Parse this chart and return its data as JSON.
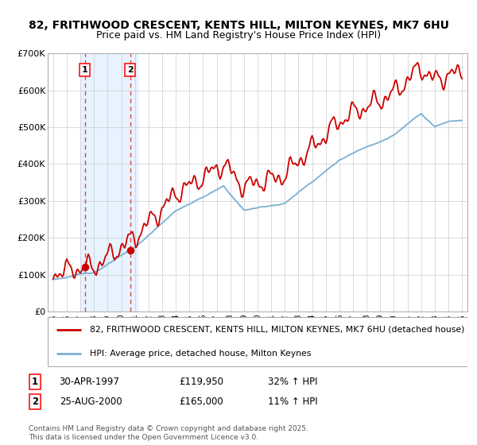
{
  "title": "82, FRITHWOOD CRESCENT, KENTS HILL, MILTON KEYNES, MK7 6HU",
  "subtitle": "Price paid vs. HM Land Registry's House Price Index (HPI)",
  "ylim": [
    0,
    700000
  ],
  "xlim_start": 1994.6,
  "xlim_end": 2025.4,
  "yticks": [
    0,
    100000,
    200000,
    300000,
    400000,
    500000,
    600000,
    700000
  ],
  "ytick_labels": [
    "£0",
    "£100K",
    "£200K",
    "£300K",
    "£400K",
    "£500K",
    "£600K",
    "£700K"
  ],
  "xticks": [
    1995,
    1996,
    1997,
    1998,
    1999,
    2000,
    2001,
    2002,
    2003,
    2004,
    2005,
    2006,
    2007,
    2008,
    2009,
    2010,
    2011,
    2012,
    2013,
    2014,
    2015,
    2016,
    2017,
    2018,
    2019,
    2020,
    2021,
    2022,
    2023,
    2024,
    2025
  ],
  "transaction1_x": 1997.33,
  "transaction1_y": 119950,
  "transaction1_label": "1",
  "transaction2_x": 2000.65,
  "transaction2_y": 165000,
  "transaction2_label": "2",
  "shade_start": 1997.0,
  "shade_end": 2001.2,
  "red_color": "#cc0000",
  "blue_color": "#7aafd4",
  "dashed_red_color": "#dd4444",
  "shading_color": "#ddeeff",
  "legend_red_label": "82, FRITHWOOD CRESCENT, KENTS HILL, MILTON KEYNES, MK7 6HU (detached house)",
  "legend_blue_label": "HPI: Average price, detached house, Milton Keynes",
  "table_rows": [
    {
      "num": "1",
      "date": "30-APR-1997",
      "price": "£119,950",
      "hpi": "32% ↑ HPI"
    },
    {
      "num": "2",
      "date": "25-AUG-2000",
      "price": "£165,000",
      "hpi": "11% ↑ HPI"
    }
  ],
  "copyright": "Contains HM Land Registry data © Crown copyright and database right 2025.\nThis data is licensed under the Open Government Licence v3.0.",
  "bg_color": "#ffffff",
  "grid_color": "#cccccc"
}
